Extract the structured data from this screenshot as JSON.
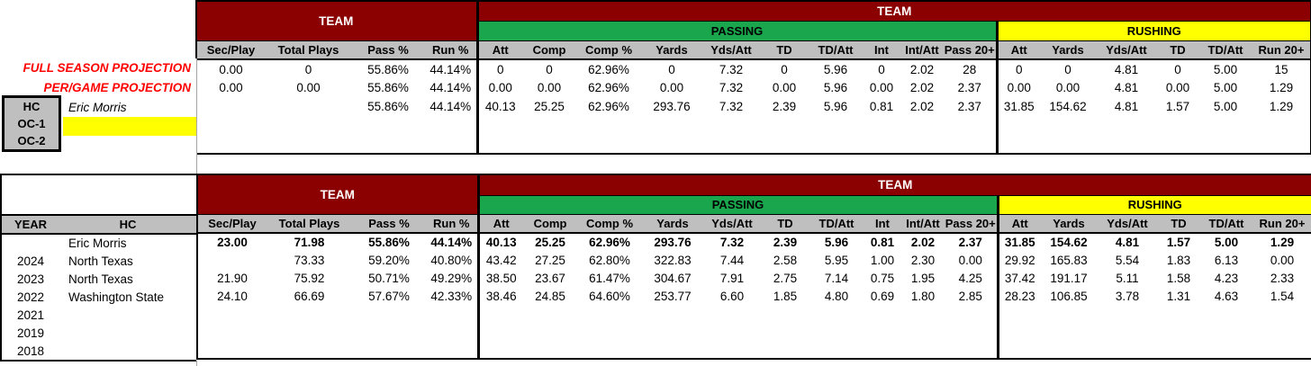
{
  "labels": {
    "team": "TEAM",
    "passing": "PASSING",
    "rushing": "RUSHING"
  },
  "stat_headers": [
    "Sec/Play",
    "Total Plays",
    "Pass %",
    "Run %",
    "Att",
    "Comp",
    "Comp %",
    "Yards",
    "Yds/Att",
    "TD",
    "TD/Att",
    "Int",
    "Int/Att",
    "Pass 20+",
    "Att",
    "Yards",
    "Yds/Att",
    "TD",
    "TD/Att",
    "Run 20+"
  ],
  "projections": {
    "full_season_label": "FULL SEASON PROJECTION",
    "per_game_label": "PER/GAME PROJECTION"
  },
  "coach_roles": [
    "HC",
    "OC-1",
    "OC-2"
  ],
  "coach_name": "Eric Morris",
  "top_table": {
    "rows": [
      [
        "0.00",
        "0",
        "55.86%",
        "44.14%",
        "0",
        "0",
        "62.96%",
        "0",
        "7.32",
        "0",
        "5.96",
        "0",
        "2.02",
        "28",
        "0",
        "0",
        "4.81",
        "0",
        "5.00",
        "15"
      ],
      [
        "0.00",
        "0.00",
        "55.86%",
        "44.14%",
        "0.00",
        "0.00",
        "62.96%",
        "0.00",
        "7.32",
        "0.00",
        "5.96",
        "0.00",
        "2.02",
        "2.37",
        "0.00",
        "0.00",
        "4.81",
        "0.00",
        "5.00",
        "1.29"
      ],
      [
        "",
        "",
        "55.86%",
        "44.14%",
        "40.13",
        "25.25",
        "62.96%",
        "293.76",
        "7.32",
        "2.39",
        "5.96",
        "0.81",
        "2.02",
        "2.37",
        "31.85",
        "154.62",
        "4.81",
        "1.57",
        "5.00",
        "1.29"
      ],
      [
        "",
        "",
        "",
        "",
        "",
        "",
        "",
        "",
        "",
        "",
        "",
        "",
        "",
        "",
        "",
        "",
        "",
        "",
        "",
        ""
      ],
      [
        "",
        "",
        "",
        "",
        "",
        "",
        "",
        "",
        "",
        "",
        "",
        "",
        "",
        "",
        "",
        "",
        "",
        "",
        "",
        ""
      ]
    ]
  },
  "bottom_left": {
    "headers": [
      "YEAR",
      "HC"
    ],
    "rows": [
      [
        "",
        "Eric Morris"
      ],
      [
        "2024",
        "North Texas"
      ],
      [
        "2023",
        "North Texas"
      ],
      [
        "2022",
        "Washington State"
      ],
      [
        "2021",
        ""
      ],
      [
        "2019",
        ""
      ],
      [
        "2018",
        ""
      ]
    ]
  },
  "bottom_table": {
    "rows": [
      [
        "23.00",
        "71.98",
        "55.86%",
        "44.14%",
        "40.13",
        "25.25",
        "62.96%",
        "293.76",
        "7.32",
        "2.39",
        "5.96",
        "0.81",
        "2.02",
        "2.37",
        "31.85",
        "154.62",
        "4.81",
        "1.57",
        "5.00",
        "1.29"
      ],
      [
        "",
        "73.33",
        "59.20%",
        "40.80%",
        "43.42",
        "27.25",
        "62.80%",
        "322.83",
        "7.44",
        "2.58",
        "5.95",
        "1.00",
        "2.30",
        "0.00",
        "29.92",
        "165.83",
        "5.54",
        "1.83",
        "6.13",
        "0.00"
      ],
      [
        "21.90",
        "75.92",
        "50.71%",
        "49.29%",
        "38.50",
        "23.67",
        "61.47%",
        "304.67",
        "7.91",
        "2.75",
        "7.14",
        "0.75",
        "1.95",
        "4.25",
        "37.42",
        "191.17",
        "5.11",
        "1.58",
        "4.23",
        "2.33"
      ],
      [
        "24.10",
        "66.69",
        "57.67%",
        "42.33%",
        "38.46",
        "24.85",
        "64.60%",
        "253.77",
        "6.60",
        "1.85",
        "4.80",
        "0.69",
        "1.80",
        "2.85",
        "28.23",
        "106.85",
        "3.78",
        "1.31",
        "4.63",
        "1.54"
      ],
      [
        "",
        "",
        "",
        "",
        "",
        "",
        "",
        "",
        "",
        "",
        "",
        "",
        "",
        "",
        "",
        "",
        "",
        "",
        "",
        ""
      ],
      [
        "",
        "",
        "",
        "",
        "",
        "",
        "",
        "",
        "",
        "",
        "",
        "",
        "",
        "",
        "",
        "",
        "",
        "",
        "",
        ""
      ],
      [
        "",
        "",
        "",
        "",
        "",
        "",
        "",
        "",
        "",
        "",
        "",
        "",
        "",
        "",
        "",
        "",
        "",
        "",
        "",
        ""
      ]
    ]
  },
  "colors": {
    "maroon": "#8B0000",
    "green": "#1AA64D",
    "yellow": "#FFFF00",
    "header_gray": "#BFBFBF",
    "label_red": "#FF0000"
  }
}
